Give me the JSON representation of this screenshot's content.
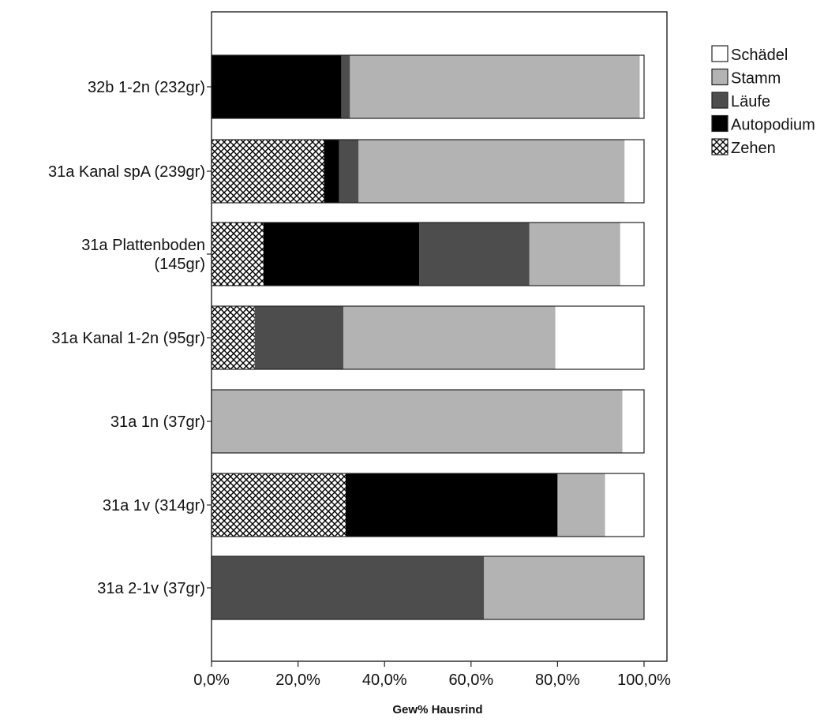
{
  "chart_data": {
    "type": "bar",
    "orientation": "horizontal",
    "stacked": true,
    "title": "",
    "xlabel": "Gew% Hausrind",
    "ylabel": "",
    "xlim": [
      0,
      100
    ],
    "xticks": [
      0,
      20,
      40,
      60,
      80,
      100
    ],
    "xtick_labels": [
      "0,0%",
      "20,0%",
      "40,0%",
      "60,0%",
      "80,0%",
      "100,0%"
    ],
    "grid": false,
    "legend_position": "top-right",
    "categories": [
      [
        "32b 1-2n (232gr)"
      ],
      [
        "31a Kanal spA (239gr)"
      ],
      [
        "31a Plattenboden",
        "(145gr)"
      ],
      [
        "31a Kanal 1-2n (95gr)"
      ],
      [
        "31a 1n (37gr)"
      ],
      [
        "31a 1v (314gr)"
      ],
      [
        "31a 2-1v (37gr)"
      ]
    ],
    "series": [
      {
        "name": "Zehen",
        "color": "#ffffff",
        "pattern": "crosshatch",
        "values": [
          0,
          26,
          12,
          10,
          0,
          31,
          0
        ]
      },
      {
        "name": "Autopodium",
        "color": "#000000",
        "values": [
          30,
          3.5,
          36,
          0,
          0,
          49,
          0
        ]
      },
      {
        "name": "Läufe",
        "color": "#4d4d4d",
        "values": [
          2,
          4.5,
          25.5,
          20.5,
          0,
          0,
          63
        ]
      },
      {
        "name": "Stamm",
        "color": "#b3b3b3",
        "values": [
          67,
          61.5,
          21,
          49,
          95,
          11,
          37
        ]
      },
      {
        "name": "Schädel",
        "color": "#ffffff",
        "values": [
          1,
          4.5,
          5.5,
          20.5,
          5,
          9,
          0
        ]
      }
    ],
    "legend_order": [
      "Schädel",
      "Stamm",
      "Läufe",
      "Autopodium",
      "Zehen"
    ]
  }
}
